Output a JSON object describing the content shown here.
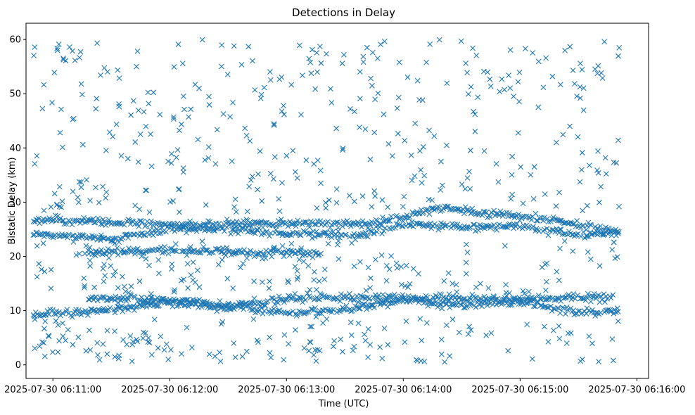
{
  "chart_data": {
    "type": "scatter",
    "title": "Detections in Delay",
    "xlabel": "Time (UTC)",
    "ylabel": "Bistatic Delay (km)",
    "marker": "x",
    "color": "#1f77b4",
    "xlim": [
      -0.23,
      5.1
    ],
    "ylim": [
      -2.5,
      63
    ],
    "x_unit": "minutes after 2025-07-30 06:11:00",
    "xticks": [
      {
        "value": 0,
        "label": "2025-07-30 06:11:00"
      },
      {
        "value": 1,
        "label": "2025-07-30 06:12:00"
      },
      {
        "value": 2,
        "label": "2025-07-30 06:13:00"
      },
      {
        "value": 3,
        "label": "2025-07-30 06:14:00"
      },
      {
        "value": 4,
        "label": "2025-07-30 06:15:00"
      },
      {
        "value": 5,
        "label": "2025-07-30 06:16:00"
      }
    ],
    "yticks": [
      {
        "value": 0,
        "label": "0"
      },
      {
        "value": 10,
        "label": "10"
      },
      {
        "value": 20,
        "label": "20"
      },
      {
        "value": 30,
        "label": "30"
      },
      {
        "value": 40,
        "label": "40"
      },
      {
        "value": 50,
        "label": "50"
      },
      {
        "value": 60,
        "label": "60"
      }
    ],
    "x_range": [
      -0.17,
      4.85
    ],
    "tracks": [
      {
        "name": "track-upper-a",
        "x": [
          -0.17,
          0.6,
          1.2,
          1.7,
          2.2,
          2.7,
          3.3,
          3.8,
          4.3,
          4.85
        ],
        "y": [
          26.8,
          26.3,
          25.8,
          26.2,
          26.0,
          25.8,
          28.8,
          27.8,
          26.5,
          24.5
        ]
      },
      {
        "name": "track-upper-b",
        "x": [
          -0.17,
          0.5,
          1.0,
          1.5,
          2.0,
          2.6,
          3.0,
          3.5,
          4.0,
          4.5,
          4.85
        ],
        "y": [
          24.2,
          23.2,
          25.0,
          25.0,
          24.2,
          23.8,
          26.0,
          25.5,
          25.5,
          24.0,
          24.5
        ]
      },
      {
        "name": "track-lower-a",
        "x": [
          -0.17,
          0.5,
          1.0,
          1.5,
          2.0,
          2.5,
          3.0,
          3.5,
          4.0,
          4.5,
          4.85
        ],
        "y": [
          9.2,
          10.0,
          11.8,
          11.0,
          9.5,
          10.2,
          12.0,
          11.0,
          11.8,
          9.5,
          10.0
        ]
      },
      {
        "name": "track-lower-b",
        "x": [
          0.3,
          0.9,
          1.4,
          2.1,
          2.6,
          3.1,
          3.6,
          4.2,
          4.8
        ],
        "y": [
          12.3,
          12.0,
          10.5,
          12.4,
          12.4,
          12.3,
          12.2,
          12.3,
          12.4
        ]
      },
      {
        "name": "track-short-c",
        "x": [
          0.3,
          0.9,
          1.6,
          2.3
        ],
        "y": [
          20.7,
          21.0,
          20.8,
          20.5
        ]
      }
    ],
    "scatter_clusters": [
      {
        "name": "noise-band-high",
        "x_range": [
          -0.17,
          4.85
        ],
        "y_range": [
          28,
          60
        ],
        "count": 360
      },
      {
        "name": "noise-band-mid",
        "x_range": [
          -0.17,
          4.85
        ],
        "y_range": [
          13,
          23
        ],
        "count": 170
      },
      {
        "name": "noise-band-low",
        "x_range": [
          -0.17,
          4.85
        ],
        "y_range": [
          0.5,
          8.5
        ],
        "count": 150
      }
    ]
  }
}
